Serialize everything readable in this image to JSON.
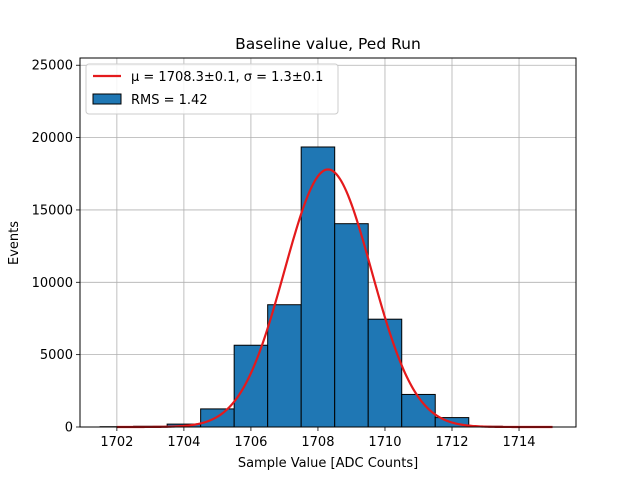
{
  "chart_data": {
    "type": "bar",
    "title": "Baseline value, Ped Run",
    "xlabel": "Sample Value [ADC Counts]",
    "ylabel": "Events",
    "xlim": [
      1700.9,
      1715.7
    ],
    "ylim": [
      0,
      25500
    ],
    "grid": true,
    "legend_position": "top-left",
    "xticks": [
      1702,
      1704,
      1706,
      1708,
      1710,
      1712,
      1714
    ],
    "yticks": [
      0,
      5000,
      10000,
      15000,
      20000,
      25000
    ],
    "bins": [
      {
        "x0": 1701.5,
        "x1": 1702.5,
        "value": 20
      },
      {
        "x0": 1702.5,
        "x1": 1703.5,
        "value": 50
      },
      {
        "x0": 1703.5,
        "x1": 1704.5,
        "value": 200
      },
      {
        "x0": 1704.5,
        "x1": 1705.5,
        "value": 1250
      },
      {
        "x0": 1705.5,
        "x1": 1706.5,
        "value": 5650
      },
      {
        "x0": 1706.5,
        "x1": 1707.5,
        "value": 8450
      },
      {
        "x0": 1707.5,
        "x1": 1708.5,
        "value": 19350
      },
      {
        "x0": 1708.5,
        "x1": 1709.5,
        "value": 14050
      },
      {
        "x0": 1709.5,
        "x1": 1710.5,
        "value": 7450
      },
      {
        "x0": 1710.5,
        "x1": 1711.5,
        "value": 2250
      },
      {
        "x0": 1711.5,
        "x1": 1712.5,
        "value": 650
      },
      {
        "x0": 1712.5,
        "x1": 1713.5,
        "value": 50
      },
      {
        "x0": 1713.5,
        "x1": 1714.5,
        "value": 10
      }
    ],
    "series": [
      {
        "name": "RMS = 1.42",
        "kind": "histogram",
        "color": "#1f77b4"
      },
      {
        "name": "μ = 1708.3±0.1, σ = 1.3±0.1",
        "kind": "gaussian-fit",
        "color": "#e41a1c",
        "mu": 1708.3,
        "sigma": 1.3,
        "amplitude": 17800,
        "x_range": [
          1702,
          1715
        ]
      }
    ],
    "legend": [
      {
        "label": "μ = 1708.3±0.1, σ = 1.3±0.1",
        "symbol": "line",
        "color": "#e41a1c"
      },
      {
        "label": "RMS = 1.42",
        "symbol": "patch",
        "color": "#1f77b4"
      }
    ]
  }
}
